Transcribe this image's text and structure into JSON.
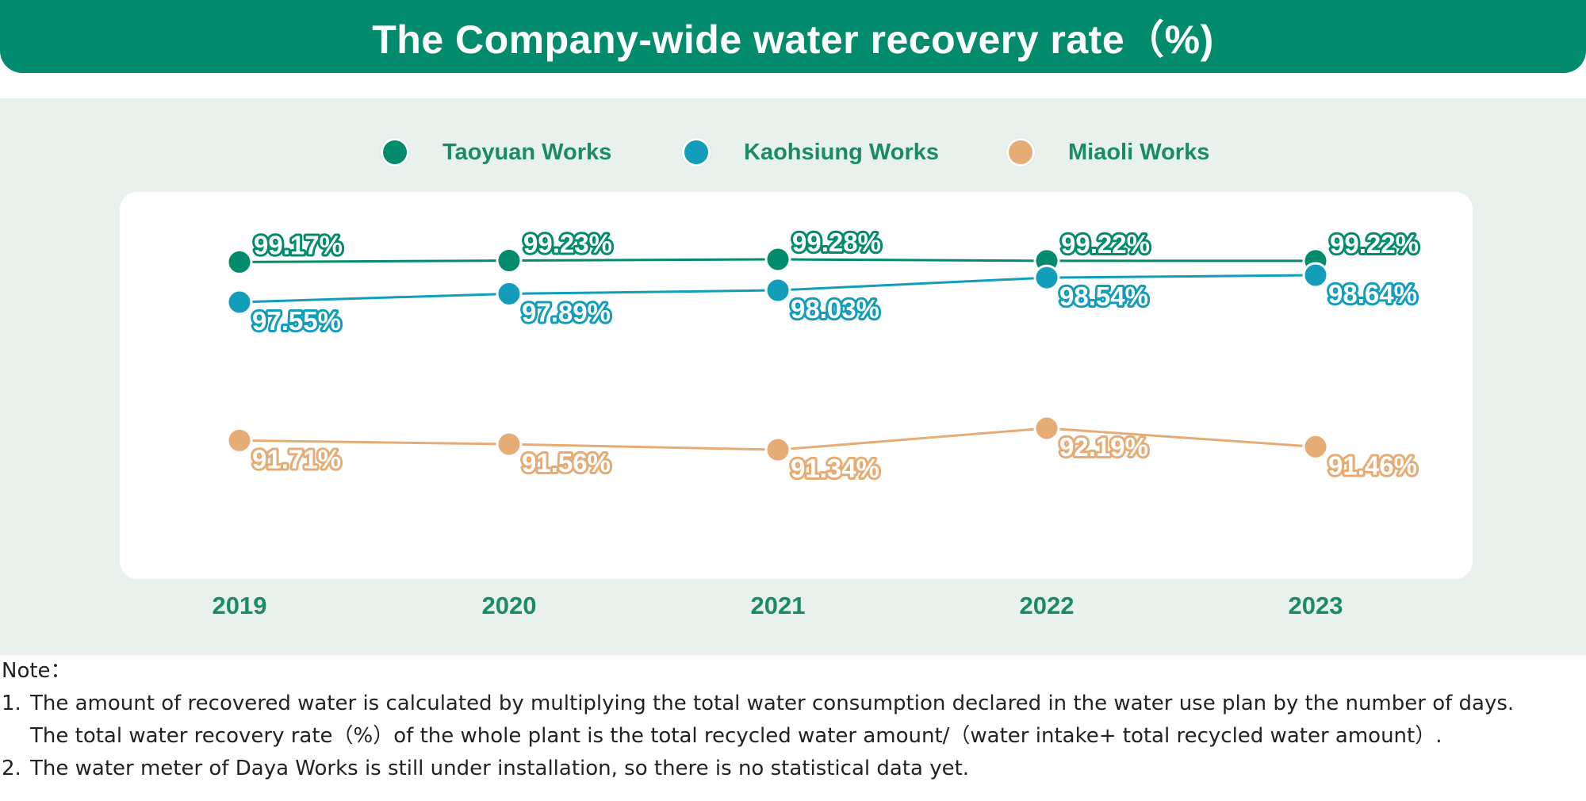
{
  "title": "The Company-wide water recovery rate（%)",
  "legend": [
    {
      "label": "Taoyuan Works",
      "color": "#028b6c"
    },
    {
      "label": "Kaohsiung Works",
      "color": "#129dbb"
    },
    {
      "label": "Miaoli Works",
      "color": "#e6ac75"
    }
  ],
  "chart_data": {
    "type": "line",
    "title": "The Company-wide water recovery rate（%)",
    "categories": [
      "2019",
      "2020",
      "2021",
      "2022",
      "2023"
    ],
    "series": [
      {
        "name": "Taoyuan Works",
        "color": "#028b6c",
        "values": [
          99.17,
          99.23,
          99.28,
          99.22,
          99.22
        ],
        "labels": [
          "99.17%",
          "99.23%",
          "99.28%",
          "99.22%",
          "99.22%"
        ]
      },
      {
        "name": "Kaohsiung Works",
        "color": "#129dbb",
        "values": [
          97.55,
          97.89,
          98.03,
          98.54,
          98.64
        ],
        "labels": [
          "97.55%",
          "97.89%",
          "98.03%",
          "98.54%",
          "98.64%"
        ]
      },
      {
        "name": "Miaoli Works",
        "color": "#e6ac75",
        "values": [
          91.71,
          91.56,
          91.34,
          92.19,
          91.46
        ],
        "labels": [
          "91.71%",
          "91.56%",
          "91.34%",
          "92.19%",
          "91.46%"
        ]
      }
    ],
    "ylabel": "%",
    "grid": false,
    "legend_position": "top-center"
  },
  "notes": {
    "heading": "Note：",
    "items": [
      {
        "num": "1.",
        "lines": [
          "The amount of recovered water is calculated by multiplying the total water consumption declared in the water use plan by the number of days.",
          "The total water recovery rate（%）of the whole plant is the total recycled water amount/（water intake+ total recycled water amount）."
        ]
      },
      {
        "num": "2.",
        "lines": [
          "The water meter of Daya Works is still under installation, so there is no statistical data yet."
        ]
      }
    ]
  }
}
